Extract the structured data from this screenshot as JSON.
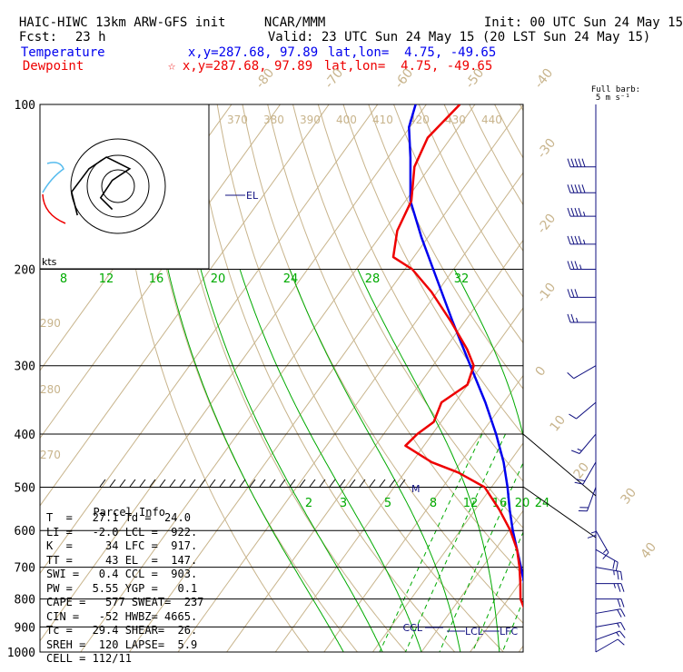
{
  "header": {
    "model": "HAIC-HIWC 13km ARW-GFS init",
    "org": "NCAR/MMM",
    "init": "Init: 00 UTC Sun 24 May 15",
    "fcst_label": "Fcst:",
    "fcst_value": "23 h",
    "valid": "Valid: 23 UTC Sun 24 May 15 (20 LST Sun 24 May 15)",
    "temp_label": "Temperature",
    "temp_xy": "x,y=287.68, 97.89",
    "temp_latlon": "lat,lon=  4.75, -49.65",
    "dew_label": "Dewpoint",
    "dew_marker": "☆",
    "dew_xy": "x,y=287.68, 97.89",
    "dew_latlon": "lat,lon=  4.75, -49.65"
  },
  "barb_header": [
    "Full barb:",
    "5 m s⁻¹"
  ],
  "hodograph": {
    "units_label": "kts"
  },
  "parcel": {
    "title": "Parcel Info",
    "rows": [
      "T  =   27.1 Td =  24.0",
      "LI =   -2.0 LCL =  922.",
      "K  =     34 LFC =  917.",
      "TT =     43 EL  =  147.",
      "SWI =   0.4 CCL =  903.",
      "PW =   5.55 YGP =   0.1",
      "CAPE =   577 SWEAT=  237",
      "CIN =   -52 HWBZ= 4665.",
      "Tc =   29.4 SHEAR=  26.",
      "SREH =  120 LAPSE=  5.9",
      "CELL = 112/11"
    ]
  },
  "level_labels": {
    "el": "EL",
    "ccl": "CCL",
    "lcl": "LCL",
    "lfc": "LFC",
    "m": "M"
  },
  "colors": {
    "temperature": "#0000ee",
    "dewpoint": "#ee0000",
    "dry_adiabat": "#c8b48c",
    "mixing_ratio": "#00aa00",
    "wind": "#101080",
    "hodo_cyan": "#55bbee"
  },
  "chart_data": {
    "type": "skew-t log-p",
    "pressure_levels": [
      100,
      200,
      300,
      400,
      500,
      600,
      700,
      800,
      900,
      1000
    ],
    "isotherm_labels": [
      -80,
      -70,
      -60,
      -50,
      -40,
      -30,
      -20,
      -10,
      0,
      10,
      20,
      30,
      40
    ],
    "theta_labels_top": [
      370,
      380,
      390,
      400,
      410,
      420,
      430,
      440
    ],
    "theta_labels_left": [
      290,
      280,
      270
    ],
    "mixing_ratio_labels_upper": [
      8,
      12,
      16,
      20,
      24,
      28,
      32
    ],
    "mixing_ratio_labels_lower": [
      2,
      3,
      5,
      8,
      12,
      16,
      20,
      24
    ],
    "temperature": {
      "name": "Temperature",
      "p": [
        1000,
        980,
        960,
        925,
        900,
        850,
        800,
        750,
        700,
        650,
        600,
        550,
        500,
        450,
        400,
        350,
        300,
        250,
        200,
        175,
        150,
        125,
        110,
        100
      ],
      "t": [
        27.1,
        25.0,
        23.5,
        20.8,
        19.2,
        17.3,
        14.1,
        11.0,
        7.9,
        4.5,
        0.8,
        -2.9,
        -6.7,
        -11.2,
        -16.9,
        -23.8,
        -32.3,
        -42.3,
        -54.2,
        -61.3,
        -69.0,
        -75.4,
        -80.2,
        -82.2
      ]
    },
    "dewpoint": {
      "name": "Dewpoint",
      "p": [
        1000,
        980,
        950,
        925,
        900,
        850,
        800,
        750,
        700,
        650,
        600,
        550,
        500,
        470,
        450,
        420,
        400,
        380,
        350,
        325,
        300,
        280,
        250,
        220,
        200,
        190,
        170,
        150,
        130,
        115,
        100
      ],
      "td": [
        24.0,
        21.5,
        19.6,
        20.1,
        18.5,
        15.8,
        12.5,
        10.2,
        7.6,
        4.5,
        0.3,
        -5.0,
        -11.4,
        -19.0,
        -26.0,
        -33.8,
        -33.1,
        -31.5,
        -32.8,
        -30.1,
        -31.6,
        -35.4,
        -42.6,
        -51.2,
        -58.5,
        -64.2,
        -67.3,
        -68.8,
        -73.2,
        -74.8,
        -73.1
      ]
    },
    "winds": [
      {
        "p": 130,
        "dir": 270,
        "spd_kt": 50
      },
      {
        "p": 145,
        "dir": 270,
        "spd_kt": 50
      },
      {
        "p": 160,
        "dir": 270,
        "spd_kt": 45
      },
      {
        "p": 180,
        "dir": 270,
        "spd_kt": 45
      },
      {
        "p": 200,
        "dir": 270,
        "spd_kt": 35
      },
      {
        "p": 225,
        "dir": 270,
        "spd_kt": 30
      },
      {
        "p": 250,
        "dir": 270,
        "spd_kt": 25
      },
      {
        "p": 300,
        "dir": 240,
        "spd_kt": 10
      },
      {
        "p": 350,
        "dir": 230,
        "spd_kt": 10
      },
      {
        "p": 400,
        "dir": 220,
        "spd_kt": 15
      },
      {
        "p": 450,
        "dir": 210,
        "spd_kt": 20
      },
      {
        "p": 500,
        "dir": 200,
        "spd_kt": 20
      },
      {
        "p": 550,
        "dir": 180,
        "spd_kt": 15
      },
      {
        "p": 600,
        "dir": 150,
        "spd_kt": 15
      },
      {
        "p": 650,
        "dir": 120,
        "spd_kt": 20
      },
      {
        "p": 700,
        "dir": 100,
        "spd_kt": 25
      },
      {
        "p": 750,
        "dir": 90,
        "spd_kt": 25
      },
      {
        "p": 800,
        "dir": 90,
        "spd_kt": 20
      },
      {
        "p": 850,
        "dir": 80,
        "spd_kt": 20
      },
      {
        "p": 900,
        "dir": 80,
        "spd_kt": 15
      },
      {
        "p": 950,
        "dir": 70,
        "spd_kt": 15
      },
      {
        "p": 1000,
        "dir": 60,
        "spd_kt": 10
      }
    ],
    "hodograph": [
      [
        -14,
        -10
      ],
      [
        -16,
        -2
      ],
      [
        -10,
        6
      ],
      [
        -4,
        10
      ],
      [
        4,
        6
      ],
      [
        -2,
        2
      ],
      [
        -6,
        -4
      ],
      [
        -2,
        -8
      ]
    ]
  }
}
